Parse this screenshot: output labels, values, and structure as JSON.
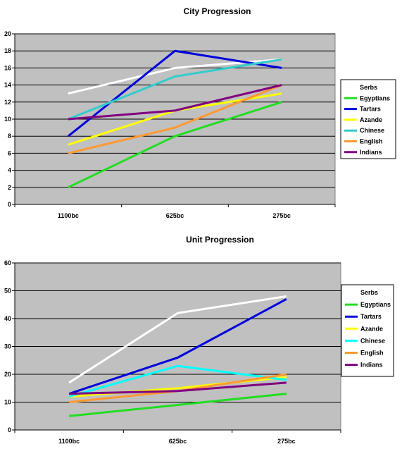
{
  "chart_data": [
    {
      "type": "line",
      "title": "City Progression",
      "categories": [
        "1100bc",
        "625bc",
        "275bc"
      ],
      "ylim": [
        0,
        20
      ],
      "ytick_step": 2,
      "grid": true,
      "legend_position": "right",
      "plot_background": "#c0c0c0",
      "series": [
        {
          "name": "Serbs",
          "color": "#ffffff",
          "values": [
            13,
            16,
            17
          ]
        },
        {
          "name": "Egyptians",
          "color": "#22dd22",
          "values": [
            2,
            8,
            12
          ]
        },
        {
          "name": "Tartars",
          "color": "#0000dd",
          "values": [
            8,
            18,
            16
          ]
        },
        {
          "name": "Azande",
          "color": "#ffff00",
          "values": [
            7,
            11,
            13
          ]
        },
        {
          "name": "Chinese",
          "color": "#33cccc",
          "values": [
            10,
            15,
            17
          ]
        },
        {
          "name": "English",
          "color": "#ff9933",
          "values": [
            6,
            9,
            14
          ]
        },
        {
          "name": "Indians",
          "color": "#800080",
          "values": [
            10,
            11,
            14
          ]
        }
      ]
    },
    {
      "type": "line",
      "title": "Unit Progression",
      "categories": [
        "1100bc",
        "625bc",
        "275bc"
      ],
      "ylim": [
        0,
        60
      ],
      "ytick_step": 10,
      "grid": true,
      "legend_position": "right",
      "plot_background": "#c0c0c0",
      "series": [
        {
          "name": "Serbs",
          "color": "#ffffff",
          "values": [
            17,
            42,
            48
          ]
        },
        {
          "name": "Egyptians",
          "color": "#22dd22",
          "values": [
            5,
            9,
            13
          ]
        },
        {
          "name": "Tartars",
          "color": "#0000dd",
          "values": [
            13,
            26,
            47
          ]
        },
        {
          "name": "Azande",
          "color": "#ffff00",
          "values": [
            12,
            15,
            19
          ]
        },
        {
          "name": "Chinese",
          "color": "#00ffff",
          "values": [
            12,
            23,
            18
          ]
        },
        {
          "name": "English",
          "color": "#ff9933",
          "values": [
            10,
            14,
            20
          ]
        },
        {
          "name": "Indians",
          "color": "#800080",
          "values": [
            13,
            14,
            17
          ]
        }
      ]
    }
  ]
}
